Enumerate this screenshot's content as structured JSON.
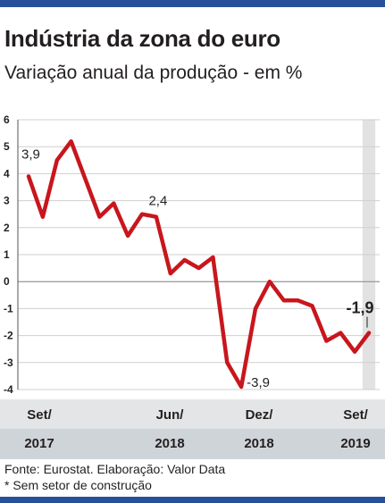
{
  "title": "Indústria da zona do euro",
  "subtitle": "Variação anual da produção - em %",
  "footer": {
    "source": "Fonte: Eurostat. Elaboração: Valor Data",
    "note": "* Sem setor de construção"
  },
  "colors": {
    "line": "#c8161d",
    "band_top": "#e3e5e7",
    "band_bottom": "#cfd4d8",
    "highlight": "#e2e2e2",
    "rule": "#27509b",
    "grid": "#cfcfcf"
  },
  "chart_data": {
    "type": "line",
    "title": "Indústria da zona do euro",
    "subtitle": "Variação anual da produção - em %",
    "ylim": [
      -4,
      6
    ],
    "yticks": [
      "6",
      "5",
      "4",
      "3",
      "2",
      "1",
      "0",
      "-1",
      "-2",
      "-3",
      "-4"
    ],
    "grid": "horizontal",
    "x": [
      "2017-09",
      "2017-10",
      "2017-11",
      "2017-12",
      "2018-01",
      "2018-02",
      "2018-03",
      "2018-04",
      "2018-05",
      "2018-06",
      "2018-07",
      "2018-08",
      "2018-09",
      "2018-10",
      "2018-11",
      "2018-12",
      "2019-01",
      "2019-02",
      "2019-03",
      "2019-04",
      "2019-05",
      "2019-06",
      "2019-07",
      "2019-08",
      "2019-09"
    ],
    "series": [
      {
        "values": [
          3.9,
          2.4,
          4.5,
          5.2,
          3.8,
          2.4,
          2.9,
          1.7,
          2.5,
          2.4,
          0.3,
          0.8,
          0.5,
          0.9,
          -3.0,
          -3.9,
          -1.0,
          0.0,
          -0.7,
          -0.7,
          -0.9,
          -2.2,
          -1.9,
          -2.6,
          -1.9
        ]
      }
    ],
    "data_labels": [
      {
        "index": 0,
        "text": "3,9"
      },
      {
        "index": 9,
        "text": "2,4"
      },
      {
        "index": 15,
        "text": "-3,9"
      },
      {
        "index": 24,
        "text": "-1,9"
      }
    ],
    "x_tick_labels": [
      {
        "index": 0,
        "month": "Set/",
        "year": "2017"
      },
      {
        "index": 9,
        "month": "Jun/",
        "year": "2018"
      },
      {
        "index": 15,
        "month": "Dez/",
        "year": "2018"
      },
      {
        "index": 24,
        "month": "Set/",
        "year": "2019"
      }
    ]
  }
}
